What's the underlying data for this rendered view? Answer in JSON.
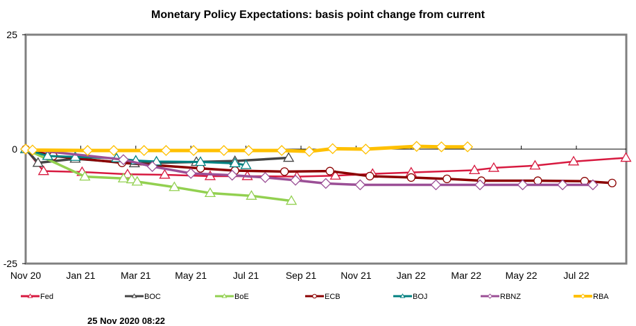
{
  "chart_data": {
    "type": "line",
    "title": "Monetary Policy Expectations: basis point change from current",
    "xlabel": "",
    "ylabel": "",
    "x_unit": "months since Nov 20",
    "xlim": [
      0,
      21.8
    ],
    "ylim": [
      -25,
      25
    ],
    "y_ticks": [
      25,
      0,
      -25
    ],
    "x_tick_labels": [
      "Nov 20",
      "Jan 21",
      "Mar 21",
      "May 21",
      "Jul 21",
      "Sep 21",
      "Nov 21",
      "Jan 22",
      "Mar 22",
      "May 22",
      "Jul 22"
    ],
    "x_tick_positions": [
      0,
      2,
      4,
      6,
      8,
      10,
      12,
      14,
      16,
      18,
      20
    ],
    "grid": false,
    "legend_position": "bottom",
    "series": [
      {
        "name": "Fed",
        "color": "#d7193f",
        "marker": "triangle",
        "points": [
          [
            0,
            0
          ],
          [
            0.65,
            -4.8
          ],
          [
            2.05,
            -5
          ],
          [
            3.7,
            -5.5
          ],
          [
            5.05,
            -5.6
          ],
          [
            6.7,
            -5.9
          ],
          [
            8.05,
            -5.9
          ],
          [
            9.85,
            -6
          ],
          [
            11.25,
            -5.8
          ],
          [
            12.6,
            -5.4
          ],
          [
            14.0,
            -5.1
          ],
          [
            16.3,
            -4.6
          ],
          [
            17.0,
            -4.1
          ],
          [
            18.5,
            -3.6
          ],
          [
            19.9,
            -2.7
          ],
          [
            21.8,
            -1.9
          ]
        ]
      },
      {
        "name": "BOC",
        "color": "#444444",
        "marker": "triangle",
        "points": [
          [
            0,
            0
          ],
          [
            0.45,
            -3
          ],
          [
            1.8,
            -2.1
          ],
          [
            3.95,
            -3.1
          ],
          [
            6.2,
            -2.8
          ],
          [
            7.6,
            -2.6
          ],
          [
            9.55,
            -1.9
          ]
        ]
      },
      {
        "name": "BoE",
        "color": "#92d050",
        "marker": "triangle",
        "points": [
          [
            0,
            0
          ],
          [
            2.15,
            -6
          ],
          [
            3.55,
            -6.4
          ],
          [
            3.85,
            -6.6
          ],
          [
            4.05,
            -7.1
          ],
          [
            5.4,
            -8.3
          ],
          [
            6.7,
            -9.6
          ],
          [
            8.2,
            -10.2
          ],
          [
            9.65,
            -11.3
          ]
        ]
      },
      {
        "name": "ECB",
        "color": "#8b0000",
        "marker": "circle",
        "points": [
          [
            0,
            0
          ],
          [
            1.0,
            -1.5
          ],
          [
            3.5,
            -3
          ],
          [
            6.35,
            -4.2
          ],
          [
            7.6,
            -4.7
          ],
          [
            9.4,
            -4.9
          ],
          [
            11.05,
            -4.8
          ],
          [
            12.5,
            -5.9
          ],
          [
            14.0,
            -6.2
          ],
          [
            15.3,
            -6.5
          ],
          [
            16.55,
            -6.9
          ],
          [
            18.6,
            -6.9
          ],
          [
            20.3,
            -7
          ],
          [
            21.3,
            -7.4
          ]
        ]
      },
      {
        "name": "BOJ",
        "color": "#008080",
        "marker": "triangle",
        "points": [
          [
            0,
            0
          ],
          [
            0.8,
            -1.5
          ],
          [
            1.8,
            -1.7
          ],
          [
            3.3,
            -2
          ],
          [
            4.0,
            -2.5
          ],
          [
            4.75,
            -2.7
          ],
          [
            6.35,
            -2.8
          ],
          [
            7.6,
            -3.1
          ],
          [
            8.0,
            -3.5
          ]
        ]
      },
      {
        "name": "RBNZ",
        "color": "#9b4f96",
        "marker": "diamond",
        "points": [
          [
            0,
            0
          ],
          [
            3.55,
            -2.3
          ],
          [
            4.6,
            -3.8
          ],
          [
            6.0,
            -5.3
          ],
          [
            7.5,
            -5.7
          ],
          [
            8.7,
            -6.2
          ],
          [
            9.8,
            -6.8
          ],
          [
            10.9,
            -7.5
          ],
          [
            12.15,
            -7.8
          ],
          [
            14.9,
            -7.8
          ],
          [
            16.5,
            -7.8
          ],
          [
            18.05,
            -7.8
          ],
          [
            19.5,
            -7.8
          ],
          [
            20.6,
            -7.8
          ]
        ]
      },
      {
        "name": "RBA",
        "color": "#ffc000",
        "marker": "diamond",
        "points": [
          [
            0,
            0
          ],
          [
            0.25,
            -0.2
          ],
          [
            2.25,
            -0.3
          ],
          [
            3.2,
            -0.3
          ],
          [
            4.3,
            -0.3
          ],
          [
            5.1,
            -0.3
          ],
          [
            6.1,
            -0.3
          ],
          [
            7.2,
            -0.3
          ],
          [
            8.1,
            -0.3
          ],
          [
            9.3,
            -0.3
          ],
          [
            10.3,
            -0.5
          ],
          [
            11.15,
            0.1
          ],
          [
            12.35,
            0
          ],
          [
            14.2,
            0.6
          ],
          [
            15.1,
            0.5
          ],
          [
            16.05,
            0.5
          ]
        ]
      }
    ]
  },
  "footer": {
    "timestamp": "25 Nov 2020 08:22"
  }
}
